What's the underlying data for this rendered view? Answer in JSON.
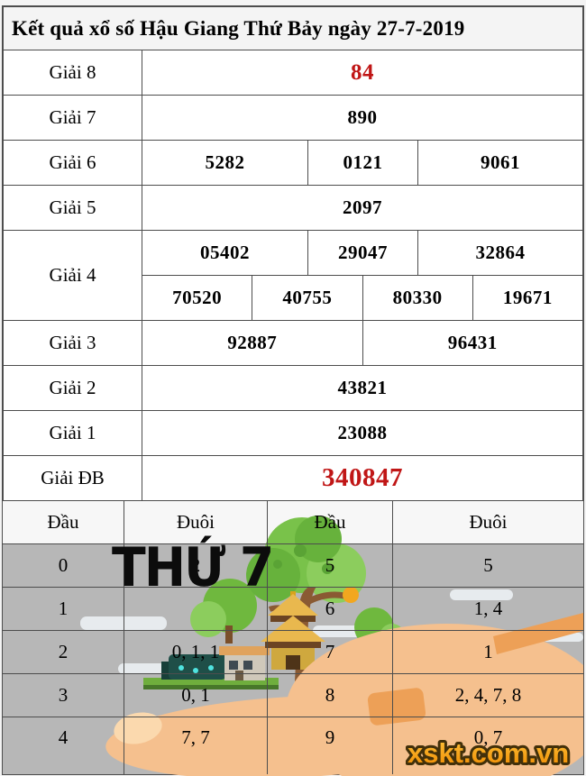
{
  "title": "Kết quả xổ số Hậu Giang Thứ Bảy ngày 27-7-2019",
  "results_table": {
    "rows": [
      {
        "label": "Giải 8",
        "lines": [
          [
            "84"
          ]
        ],
        "highlight": "red-medium"
      },
      {
        "label": "Giải 7",
        "lines": [
          [
            "890"
          ]
        ]
      },
      {
        "label": "Giải 6",
        "lines": [
          [
            "5282",
            "0121",
            "9061"
          ]
        ]
      },
      {
        "label": "Giải 5",
        "lines": [
          [
            "2097"
          ]
        ]
      },
      {
        "label": "Giải 4",
        "lines": [
          [
            "05402",
            "29047",
            "32864"
          ],
          [
            "70520",
            "40755",
            "80330",
            "19671"
          ]
        ]
      },
      {
        "label": "Giải 3",
        "lines": [
          [
            "92887",
            "96431"
          ]
        ]
      },
      {
        "label": "Giải 2",
        "lines": [
          [
            "43821"
          ]
        ]
      },
      {
        "label": "Giải 1",
        "lines": [
          [
            "23088"
          ]
        ]
      },
      {
        "label": "Giải ĐB",
        "lines": [
          [
            "340847"
          ]
        ],
        "highlight": "red-large"
      }
    ]
  },
  "head_tail_table": {
    "headers": [
      "Đầu",
      "Đuôi",
      "Đầu",
      "Đuôi"
    ],
    "rows": [
      {
        "left_head": "0",
        "left_tails": "2",
        "right_head": "5",
        "right_tails": "5"
      },
      {
        "left_head": "1",
        "left_tails": "",
        "right_head": "6",
        "right_tails": "1, 4"
      },
      {
        "left_head": "2",
        "left_tails": "0, 1, 1",
        "right_head": "7",
        "right_tails": "1"
      },
      {
        "left_head": "3",
        "left_tails": "0, 1",
        "right_head": "8",
        "right_tails": "2, 4, 7, 8"
      },
      {
        "left_head": "4",
        "left_tails": "7, 7",
        "right_head": "9",
        "right_tails": "0, 7"
      }
    ]
  },
  "watermark_text": "THỨ 7",
  "logo_text": "xskt.com.vn",
  "icons": [
    "tree-icon",
    "pagoda-icon",
    "house-icon",
    "cloud-icon",
    "hand-icon"
  ],
  "colors": {
    "highlight_red": "#c01616",
    "row_gray": "#b7b7b7",
    "header_bg": "#f7f7f7",
    "border": "#4d4d4d",
    "logo_orange": "#f9a825",
    "logo_outline": "#42300a",
    "watermark_black": "#0c0c0c"
  }
}
